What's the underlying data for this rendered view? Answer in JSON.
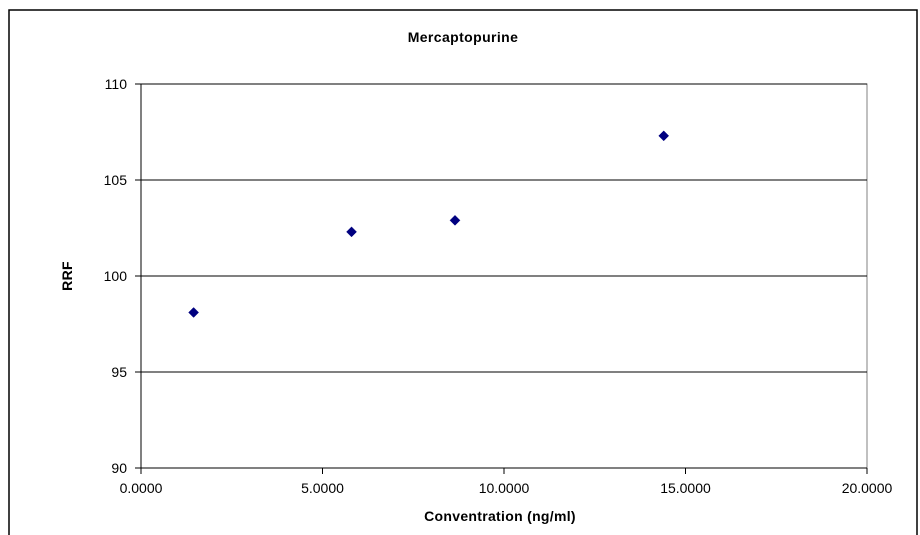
{
  "chart_data": {
    "type": "scatter",
    "title": "Mercaptopurine",
    "xlabel": "Conventration (ng/ml)",
    "ylabel": "RRF",
    "xlim": [
      0,
      20
    ],
    "ylim": [
      90,
      110
    ],
    "x_ticks": [
      "0.0000",
      "5.0000",
      "10.0000",
      "15.0000",
      "20.0000"
    ],
    "y_ticks": [
      "90",
      "95",
      "100",
      "105",
      "110"
    ],
    "grid": "horizontal",
    "legend": "none",
    "marker": "diamond",
    "marker_color": "#000080",
    "series": [
      {
        "x": [
          1.45,
          5.8,
          8.65,
          14.4
        ],
        "y": [
          98.1,
          102.3,
          102.9,
          107.3
        ]
      }
    ]
  }
}
